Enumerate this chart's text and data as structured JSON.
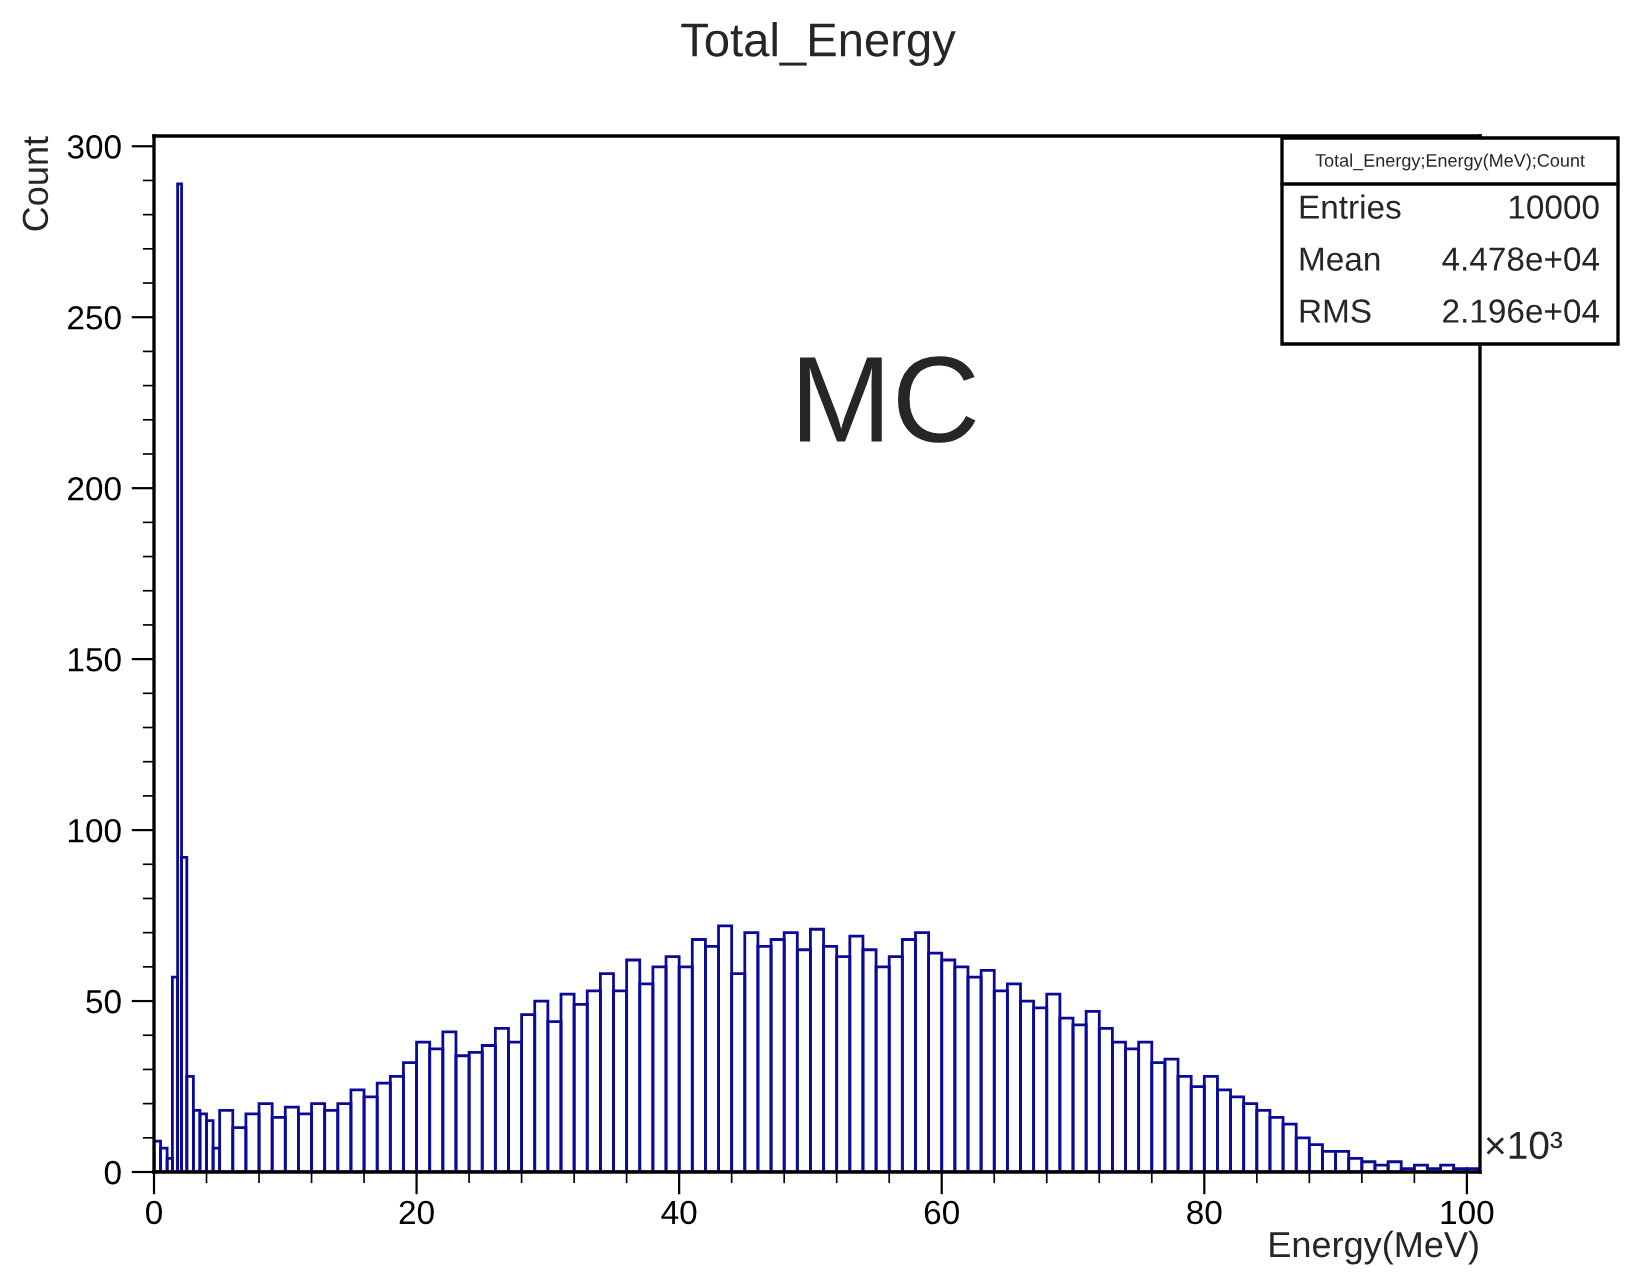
{
  "chart_data": {
    "type": "histogram",
    "title": "Total_Energy",
    "xlabel": "Energy(MeV)",
    "ylabel": "Count",
    "bins": [
      0,
      0.5,
      1,
      1.4,
      1.8,
      2.1,
      2.5,
      3,
      3.5,
      4,
      4.5,
      5,
      6,
      7,
      8,
      9,
      10,
      11,
      12,
      13,
      14,
      15,
      16,
      17,
      18,
      19,
      20,
      21,
      22,
      23,
      24,
      25,
      26,
      27,
      28,
      29,
      30,
      31,
      32,
      33,
      34,
      35,
      36,
      37,
      38,
      39,
      40,
      41,
      42,
      43,
      44,
      45,
      46,
      47,
      48,
      49,
      50,
      51,
      52,
      53,
      54,
      55,
      56,
      57,
      58,
      59,
      60,
      61,
      62,
      63,
      64,
      65,
      66,
      67,
      68,
      69,
      70,
      71,
      72,
      73,
      74,
      75,
      76,
      77,
      78,
      79,
      80,
      81,
      82,
      83,
      84,
      85,
      86,
      87,
      88,
      89,
      90,
      91,
      92,
      93,
      94,
      95,
      96,
      97,
      98,
      99,
      100,
      101
    ],
    "values": [
      9,
      7,
      4,
      57,
      289,
      92,
      28,
      18,
      17,
      15,
      7,
      18,
      13,
      17,
      20,
      16,
      19,
      17,
      20,
      18,
      20,
      24,
      22,
      26,
      28,
      32,
      38,
      36,
      41,
      34,
      35,
      37,
      42,
      38,
      46,
      50,
      44,
      52,
      49,
      53,
      58,
      53,
      62,
      55,
      60,
      63,
      60,
      68,
      66,
      72,
      58,
      70,
      66,
      68,
      70,
      65,
      71,
      66,
      63,
      69,
      65,
      60,
      63,
      68,
      70,
      64,
      62,
      60,
      57,
      59,
      53,
      55,
      50,
      48,
      52,
      45,
      43,
      47,
      42,
      38,
      36,
      38,
      32,
      33,
      28,
      25,
      28,
      24,
      22,
      20,
      18,
      16,
      14,
      10,
      8,
      6,
      6,
      4,
      3,
      2,
      3,
      1,
      2,
      1,
      2,
      1,
      1
    ],
    "color": "#0a0a9a",
    "xlim": [
      0,
      101
    ],
    "ylim": [
      0,
      303
    ],
    "xticks": [
      0,
      20,
      40,
      60,
      80,
      100
    ],
    "yticks": [
      0,
      50,
      100,
      150,
      200,
      250,
      300
    ],
    "grid": false,
    "legend": false,
    "annotations": [
      "×10³",
      "MC",
      "Total_Energy;Energy(MeV);Count",
      "Entries",
      "10000",
      "Mean",
      "4.478e+04",
      "RMS",
      "2.196e+04"
    ]
  }
}
